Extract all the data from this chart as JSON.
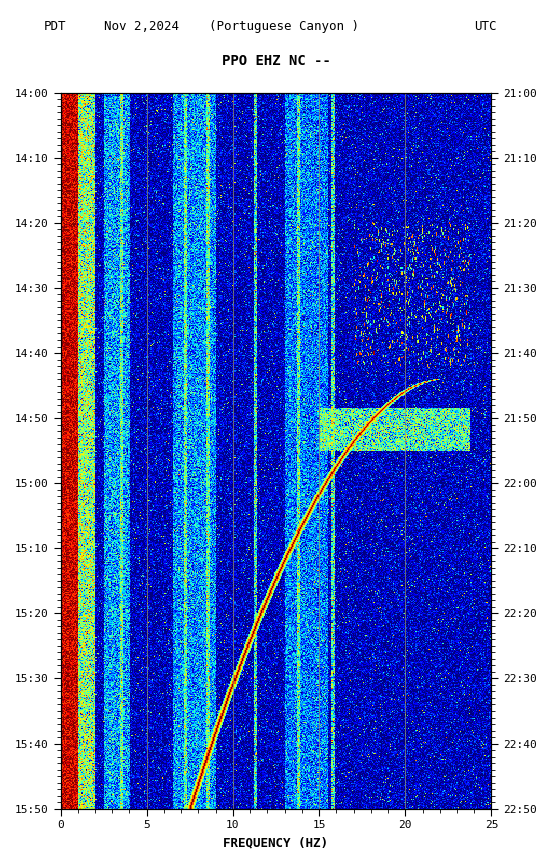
{
  "title_line1": "PPO EHZ NC --",
  "title_line2": "(Portuguese Canyon )",
  "left_label": "PDT",
  "date_label": "Nov 2,2024",
  "right_label": "UTC",
  "xlabel": "FREQUENCY (HZ)",
  "freq_min": 0,
  "freq_max": 25,
  "pdt_ticks": [
    "14:00",
    "14:10",
    "14:20",
    "14:30",
    "14:40",
    "14:50",
    "15:00",
    "15:10",
    "15:20",
    "15:30",
    "15:40",
    "15:50"
  ],
  "utc_ticks": [
    "21:00",
    "21:10",
    "21:20",
    "21:30",
    "21:40",
    "21:50",
    "22:00",
    "22:10",
    "22:20",
    "22:30",
    "22:40",
    "22:50"
  ],
  "freq_ticks": [
    0,
    5,
    10,
    15,
    20,
    25
  ],
  "grid_freqs": [
    5,
    10,
    15,
    20
  ],
  "background_color": "#ffffff",
  "colormap": "jet",
  "fig_width": 5.52,
  "fig_height": 8.64,
  "dpi": 100,
  "vmin_pct": 20,
  "vmax_pct": 99
}
